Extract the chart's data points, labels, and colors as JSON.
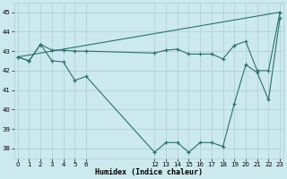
{
  "xlabel": "Humidex (Indice chaleur)",
  "bg_color": "#cce9ee",
  "grid_color": "#aacdd4",
  "line_color": "#2a7070",
  "ylim": [
    37.5,
    45.5
  ],
  "yticks": [
    38,
    39,
    40,
    41,
    42,
    43,
    44,
    45
  ],
  "xlim": [
    -0.3,
    23.3
  ],
  "xtick_positions": [
    0,
    1,
    2,
    3,
    4,
    5,
    6,
    12,
    13,
    14,
    15,
    16,
    17,
    18,
    19,
    20,
    21,
    22,
    23
  ],
  "xtick_labels": [
    "0",
    "1",
    "2",
    "3",
    "4",
    "5",
    "6",
    "12",
    "13",
    "14",
    "15",
    "16",
    "17",
    "18",
    "19",
    "20",
    "21",
    "22",
    "23"
  ],
  "series": [
    {
      "x": [
        0,
        1,
        2,
        3,
        4,
        5,
        6,
        12,
        13,
        14,
        15,
        16,
        17,
        18,
        19,
        20,
        21,
        22,
        23
      ],
      "y": [
        42.7,
        42.5,
        43.35,
        42.5,
        42.45,
        41.5,
        41.7,
        37.8,
        38.3,
        38.3,
        37.8,
        38.3,
        38.3,
        38.1,
        40.3,
        42.3,
        41.9,
        40.5,
        44.7
      ],
      "marker": true
    },
    {
      "x": [
        0,
        1,
        2,
        3,
        4,
        5,
        6,
        12,
        13,
        14,
        15,
        16,
        17,
        18,
        19,
        20,
        21,
        22,
        23
      ],
      "y": [
        42.7,
        42.5,
        43.35,
        43.05,
        43.05,
        43.0,
        43.0,
        42.9,
        43.05,
        43.1,
        42.85,
        42.85,
        42.85,
        42.6,
        43.3,
        43.5,
        42.0,
        42.0,
        45.0
      ],
      "marker": true
    },
    {
      "x": [
        0,
        23
      ],
      "y": [
        42.7,
        45.0
      ],
      "marker": false
    }
  ]
}
